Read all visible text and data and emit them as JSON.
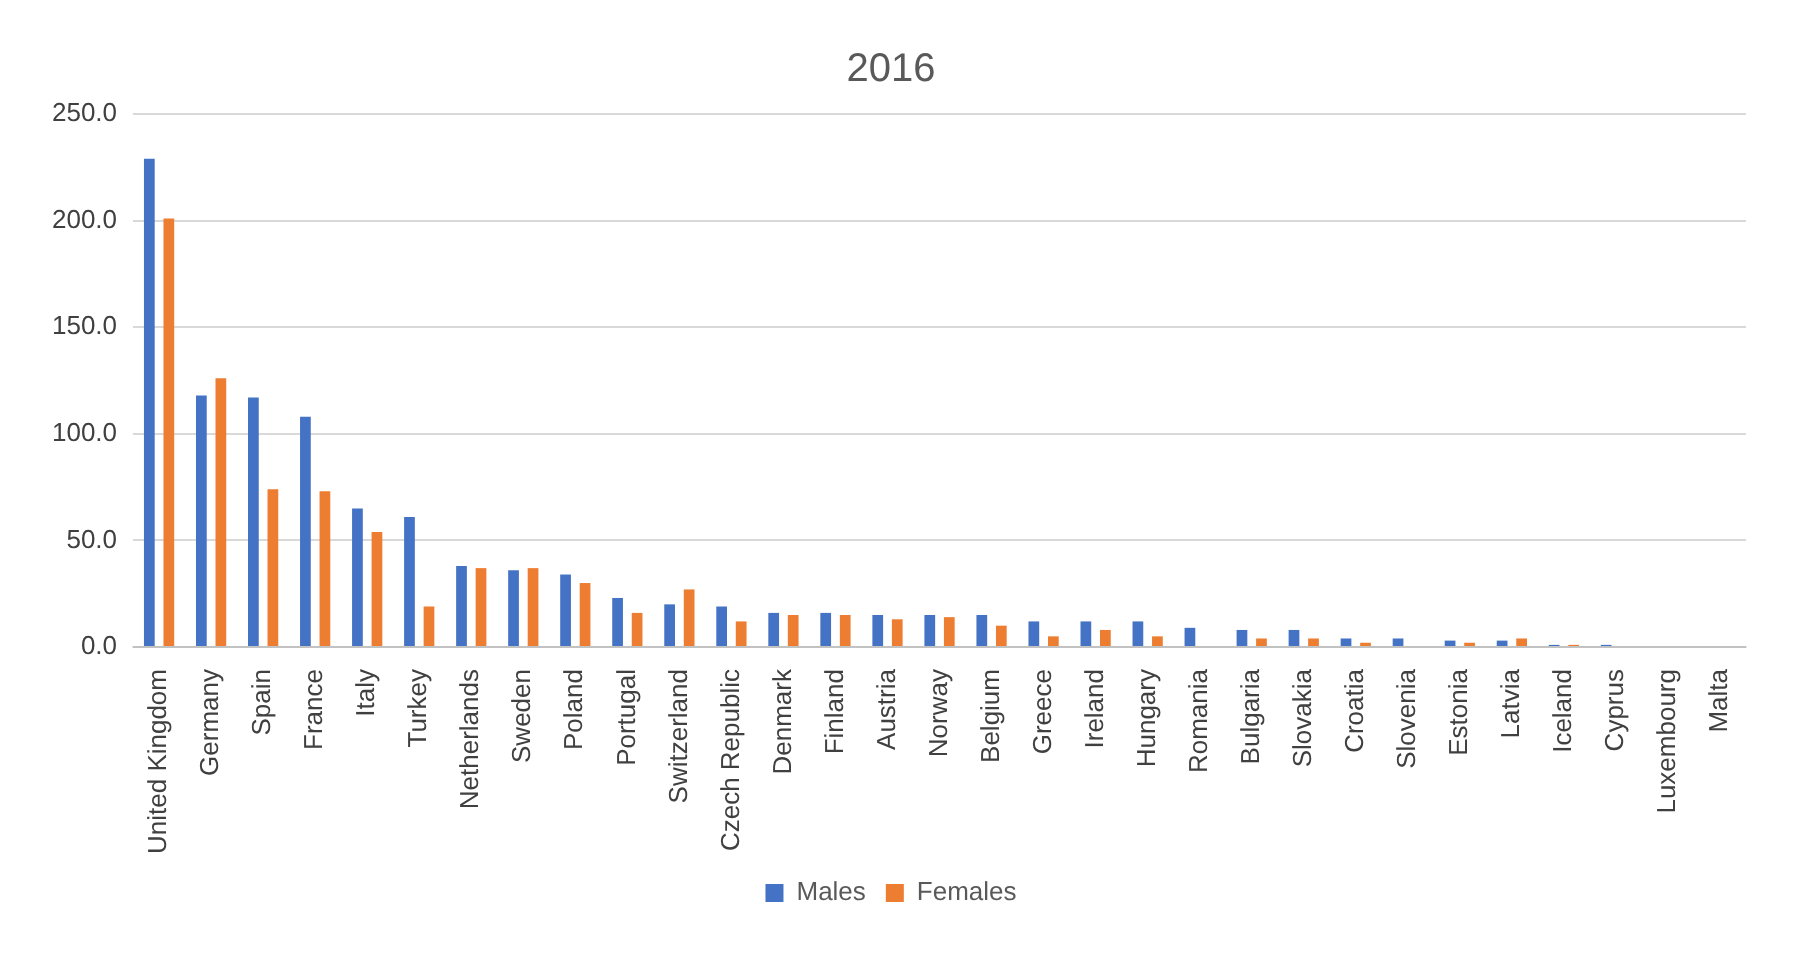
{
  "chart_data": {
    "type": "bar",
    "title": "2016",
    "categories": [
      "United Kingdom",
      "Germany",
      "Spain",
      "France",
      "Italy",
      "Turkey",
      "Netherlands",
      "Sweden",
      "Poland",
      "Portugal",
      "Switzerland",
      "Czech Republic",
      "Denmark",
      "Finland",
      "Austria",
      "Norway",
      "Belgium",
      "Greece",
      "Ireland",
      "Hungary",
      "Romania",
      "Bulgaria",
      "Slovakia",
      "Croatia",
      "Slovenia",
      "Estonia",
      "Latvia",
      "Iceland",
      "Cyprus",
      "Luxembourg",
      "Malta"
    ],
    "series": [
      {
        "name": "Males",
        "color": "#4472c4",
        "values": [
          229,
          118,
          117,
          108,
          65,
          61,
          38,
          36,
          34,
          23,
          20,
          19,
          16,
          16,
          15,
          15,
          15,
          12,
          12,
          12,
          9,
          8,
          8,
          4,
          4,
          3,
          3,
          1,
          1,
          0,
          0
        ]
      },
      {
        "name": "Females",
        "color": "#ed7d31",
        "values": [
          201,
          126,
          74,
          73,
          54,
          19,
          37,
          37,
          30,
          16,
          27,
          12,
          15,
          15,
          13,
          14,
          10,
          5,
          8,
          5,
          0,
          4,
          4,
          2,
          0,
          2,
          4,
          1,
          0,
          0,
          0
        ]
      }
    ],
    "ylim": [
      0,
      250
    ],
    "yticks": [
      {
        "value": 0,
        "label": "0.0"
      },
      {
        "value": 50,
        "label": "50.0"
      },
      {
        "value": 100,
        "label": "100.0"
      },
      {
        "value": 150,
        "label": "150.0"
      },
      {
        "value": 200,
        "label": "200.0"
      },
      {
        "value": 250,
        "label": "250.0"
      }
    ],
    "grid": "y",
    "legend": "bottom"
  }
}
